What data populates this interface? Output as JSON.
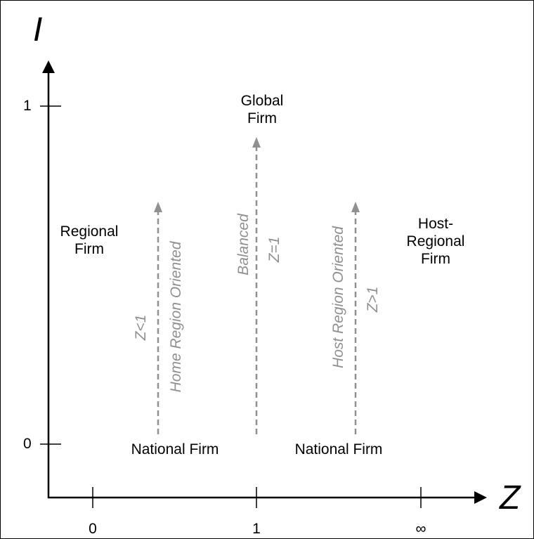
{
  "axes": {
    "y_name": "I",
    "x_name": "Z",
    "y_ticks": [
      "1",
      "0"
    ],
    "x_ticks": [
      "0",
      "1",
      "∞"
    ]
  },
  "nodes": {
    "global_firm": [
      "Global",
      "Firm"
    ],
    "regional_firm": [
      "Regional",
      "Firm"
    ],
    "host_regional_firm": [
      "Host-",
      "Regional",
      "Firm"
    ],
    "national_firm_left": "National Firm",
    "national_firm_right": "National Firm"
  },
  "paths": {
    "home": {
      "label": "Home Region Oriented",
      "condition": "Z<1"
    },
    "balanced": {
      "label": "Balanced",
      "condition": "Z=1"
    },
    "host": {
      "label": "Host Region Oriented",
      "condition": "Z>1"
    }
  },
  "colors": {
    "axis": "#000000",
    "arrow": "#909090"
  }
}
